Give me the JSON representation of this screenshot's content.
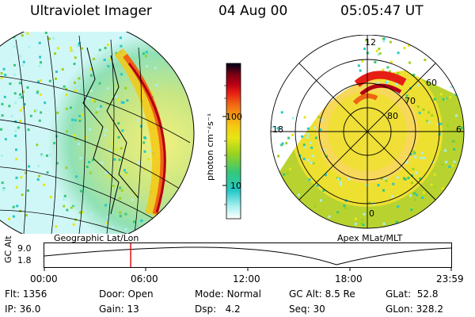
{
  "header": {
    "title": "Ultraviolet Imager",
    "date": "04 Aug 00",
    "time": "05:05:47 UT"
  },
  "geo_panel": {
    "caption": "Geographic Lat/Lon"
  },
  "polar_panel": {
    "caption": "Apex MLat/MLT",
    "mlt_labels": [
      "12",
      "18",
      "6",
      "0"
    ],
    "lat_labels": [
      "60",
      "70",
      "80"
    ]
  },
  "colorbar": {
    "unit_label": "photon cm⁻²s⁻¹",
    "tick_labels": [
      "100",
      "10"
    ],
    "scale": "log",
    "colors": [
      "#ffffff",
      "#a9f0f0",
      "#25c8c8",
      "#35c878",
      "#9cd21e",
      "#e6e614",
      "#f5c814",
      "#f59614",
      "#f06414",
      "#e61e14",
      "#b40014",
      "#7a0014",
      "#320014",
      "#00001e"
    ]
  },
  "timeline": {
    "y_label": "GC Alt",
    "y_ticks": [
      "9.0",
      "1.8"
    ],
    "x_ticks": [
      "00:00",
      "06:00",
      "12:00",
      "18:00",
      "23:59"
    ],
    "current_fraction": 0.2122,
    "marker_color": "#e01010"
  },
  "info": {
    "flt_label": "Flt:",
    "flt_value": "1356",
    "ip_label": "IP:",
    "ip_value": "36.0",
    "door_label": "Door:",
    "door_value": "Open",
    "gain_label": "Gain:",
    "gain_value": "13",
    "mode_label": "Mode:",
    "mode_value": "Normal",
    "dsp_label": "Dsp:",
    "dsp_value": "4.2",
    "gcalt_label": "GC Alt:",
    "gcalt_value": "8.5 Re",
    "seq_label": "Seq:",
    "seq_value": "30",
    "glat_label": "GLat:",
    "glat_value": "52.8",
    "glon_label": "GLon:",
    "glon_value": "328.2"
  }
}
